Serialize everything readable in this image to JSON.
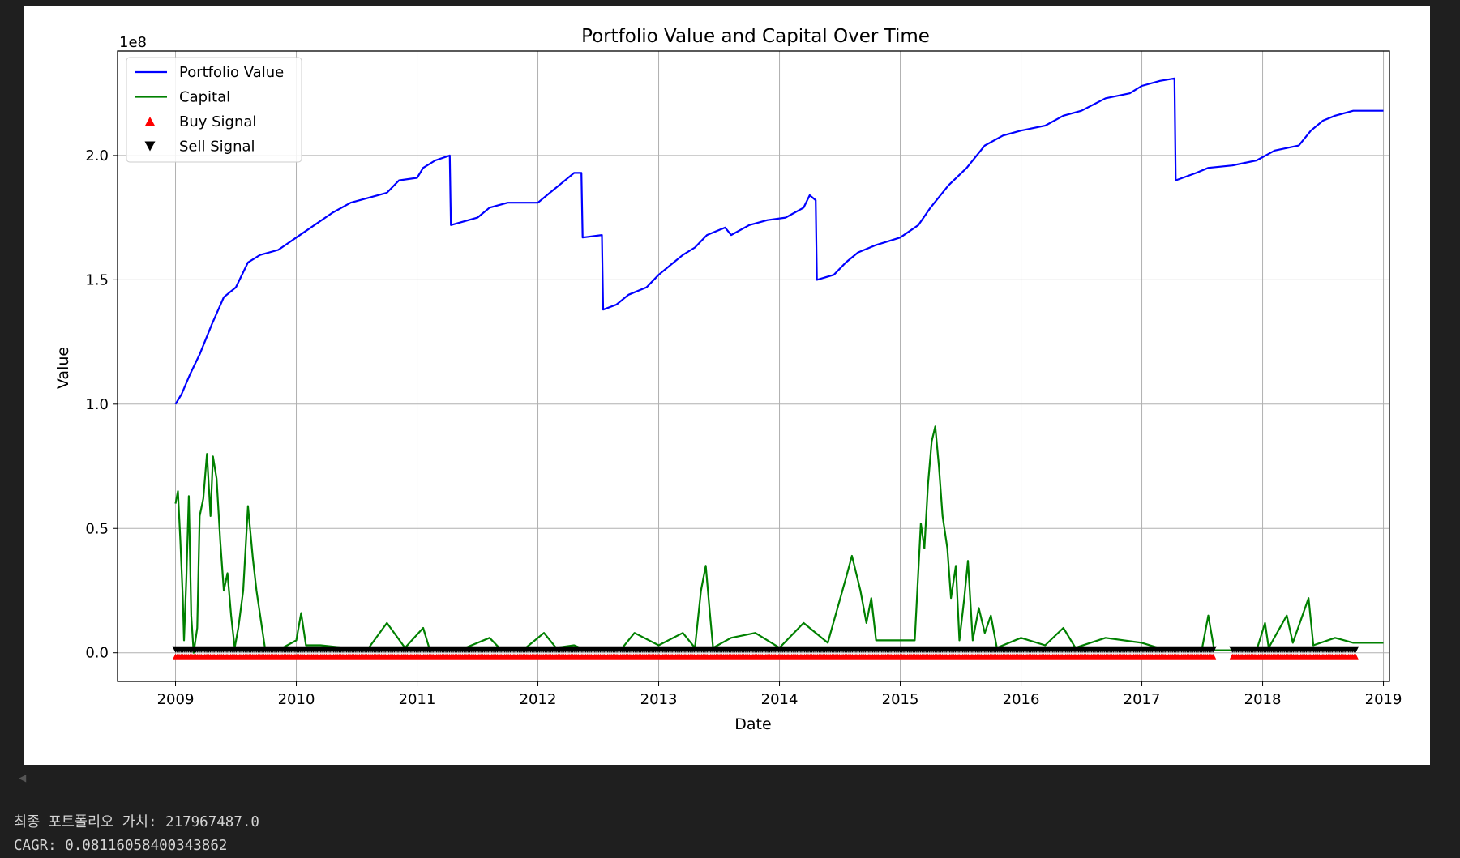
{
  "chart_data": {
    "type": "line",
    "title": "Portfolio Value and Capital Over Time",
    "xlabel": "Date",
    "ylabel": "Value",
    "y_offset_label": "1e8",
    "y_scale": 100000000,
    "xlim": [
      2008.52,
      2019.05
    ],
    "ylim": [
      -0.115,
      2.42
    ],
    "x_ticks": [
      2009,
      2010,
      2011,
      2012,
      2013,
      2014,
      2015,
      2016,
      2017,
      2018,
      2019
    ],
    "x_tick_labels": [
      "2009",
      "2010",
      "2011",
      "2012",
      "2013",
      "2014",
      "2015",
      "2016",
      "2017",
      "2018",
      "2019"
    ],
    "y_ticks": [
      0.0,
      0.5,
      1.0,
      1.5,
      2.0
    ],
    "y_tick_labels": [
      "0.0",
      "0.5",
      "1.0",
      "1.5",
      "2.0"
    ],
    "grid": true,
    "legend_position": "top-left",
    "legend": [
      {
        "label": "Portfolio Value",
        "marker": "line",
        "color": "#0000ff"
      },
      {
        "label": "Capital",
        "marker": "line",
        "color": "#008000"
      },
      {
        "label": "Buy Signal",
        "marker": "triangle-up",
        "color": "#ff0000"
      },
      {
        "label": "Sell Signal",
        "marker": "triangle-down",
        "color": "#000000"
      }
    ],
    "series": [
      {
        "name": "Portfolio Value",
        "color": "#0000ff",
        "points": [
          [
            2009.0,
            1.0
          ],
          [
            2009.05,
            1.04
          ],
          [
            2009.12,
            1.12
          ],
          [
            2009.2,
            1.2
          ],
          [
            2009.3,
            1.32
          ],
          [
            2009.4,
            1.43
          ],
          [
            2009.5,
            1.47
          ],
          [
            2009.6,
            1.57
          ],
          [
            2009.7,
            1.6
          ],
          [
            2009.85,
            1.62
          ],
          [
            2010.0,
            1.67
          ],
          [
            2010.15,
            1.72
          ],
          [
            2010.3,
            1.77
          ],
          [
            2010.45,
            1.81
          ],
          [
            2010.6,
            1.83
          ],
          [
            2010.75,
            1.85
          ],
          [
            2010.85,
            1.9
          ],
          [
            2011.0,
            1.91
          ],
          [
            2011.05,
            1.95
          ],
          [
            2011.15,
            1.98
          ],
          [
            2011.27,
            2.0
          ],
          [
            2011.28,
            1.72
          ],
          [
            2011.5,
            1.75
          ],
          [
            2011.6,
            1.79
          ],
          [
            2011.75,
            1.81
          ],
          [
            2012.0,
            1.81
          ],
          [
            2012.1,
            1.85
          ],
          [
            2012.2,
            1.89
          ],
          [
            2012.3,
            1.93
          ],
          [
            2012.36,
            1.93
          ],
          [
            2012.37,
            1.67
          ],
          [
            2012.53,
            1.68
          ],
          [
            2012.54,
            1.38
          ],
          [
            2012.65,
            1.4
          ],
          [
            2012.75,
            1.44
          ],
          [
            2012.9,
            1.47
          ],
          [
            2013.0,
            1.52
          ],
          [
            2013.1,
            1.56
          ],
          [
            2013.2,
            1.6
          ],
          [
            2013.3,
            1.63
          ],
          [
            2013.4,
            1.68
          ],
          [
            2013.55,
            1.71
          ],
          [
            2013.6,
            1.68
          ],
          [
            2013.75,
            1.72
          ],
          [
            2013.9,
            1.74
          ],
          [
            2014.05,
            1.75
          ],
          [
            2014.2,
            1.79
          ],
          [
            2014.25,
            1.84
          ],
          [
            2014.3,
            1.82
          ],
          [
            2014.31,
            1.5
          ],
          [
            2014.45,
            1.52
          ],
          [
            2014.55,
            1.57
          ],
          [
            2014.65,
            1.61
          ],
          [
            2014.8,
            1.64
          ],
          [
            2015.0,
            1.67
          ],
          [
            2015.15,
            1.72
          ],
          [
            2015.25,
            1.79
          ],
          [
            2015.4,
            1.88
          ],
          [
            2015.55,
            1.95
          ],
          [
            2015.7,
            2.04
          ],
          [
            2015.85,
            2.08
          ],
          [
            2016.0,
            2.1
          ],
          [
            2016.2,
            2.12
          ],
          [
            2016.35,
            2.16
          ],
          [
            2016.5,
            2.18
          ],
          [
            2016.7,
            2.23
          ],
          [
            2016.9,
            2.25
          ],
          [
            2017.0,
            2.28
          ],
          [
            2017.15,
            2.3
          ],
          [
            2017.27,
            2.31
          ],
          [
            2017.28,
            1.9
          ],
          [
            2017.45,
            1.93
          ],
          [
            2017.55,
            1.95
          ],
          [
            2017.75,
            1.96
          ],
          [
            2017.95,
            1.98
          ],
          [
            2018.1,
            2.02
          ],
          [
            2018.3,
            2.04
          ],
          [
            2018.4,
            2.1
          ],
          [
            2018.5,
            2.14
          ],
          [
            2018.6,
            2.16
          ],
          [
            2018.75,
            2.18
          ],
          [
            2019.0,
            2.18
          ]
        ]
      },
      {
        "name": "Capital",
        "color": "#008000",
        "points": [
          [
            2009.0,
            0.6
          ],
          [
            2009.02,
            0.65
          ],
          [
            2009.04,
            0.45
          ],
          [
            2009.06,
            0.22
          ],
          [
            2009.07,
            0.05
          ],
          [
            2009.09,
            0.3
          ],
          [
            2009.11,
            0.63
          ],
          [
            2009.13,
            0.15
          ],
          [
            2009.15,
            0.0
          ],
          [
            2009.18,
            0.1
          ],
          [
            2009.2,
            0.55
          ],
          [
            2009.23,
            0.62
          ],
          [
            2009.26,
            0.8
          ],
          [
            2009.29,
            0.55
          ],
          [
            2009.31,
            0.79
          ],
          [
            2009.34,
            0.7
          ],
          [
            2009.37,
            0.45
          ],
          [
            2009.4,
            0.25
          ],
          [
            2009.43,
            0.32
          ],
          [
            2009.46,
            0.15
          ],
          [
            2009.49,
            0.02
          ],
          [
            2009.52,
            0.1
          ],
          [
            2009.56,
            0.25
          ],
          [
            2009.6,
            0.59
          ],
          [
            2009.64,
            0.38
          ],
          [
            2009.67,
            0.25
          ],
          [
            2009.71,
            0.12
          ],
          [
            2009.74,
            0.02
          ],
          [
            2009.85,
            0.01
          ],
          [
            2010.0,
            0.05
          ],
          [
            2010.04,
            0.16
          ],
          [
            2010.08,
            0.03
          ],
          [
            2010.2,
            0.03
          ],
          [
            2010.4,
            0.02
          ],
          [
            2010.6,
            0.02
          ],
          [
            2010.75,
            0.12
          ],
          [
            2010.9,
            0.02
          ],
          [
            2011.05,
            0.1
          ],
          [
            2011.1,
            0.02
          ],
          [
            2011.4,
            0.02
          ],
          [
            2011.6,
            0.06
          ],
          [
            2011.7,
            0.01
          ],
          [
            2011.9,
            0.02
          ],
          [
            2012.05,
            0.08
          ],
          [
            2012.15,
            0.02
          ],
          [
            2012.3,
            0.03
          ],
          [
            2012.4,
            0.01
          ],
          [
            2012.7,
            0.02
          ],
          [
            2012.8,
            0.08
          ],
          [
            2013.0,
            0.03
          ],
          [
            2013.2,
            0.08
          ],
          [
            2013.3,
            0.02
          ],
          [
            2013.35,
            0.25
          ],
          [
            2013.39,
            0.35
          ],
          [
            2013.42,
            0.18
          ],
          [
            2013.45,
            0.02
          ],
          [
            2013.6,
            0.06
          ],
          [
            2013.8,
            0.08
          ],
          [
            2014.0,
            0.02
          ],
          [
            2014.2,
            0.12
          ],
          [
            2014.4,
            0.04
          ],
          [
            2014.55,
            0.3
          ],
          [
            2014.6,
            0.39
          ],
          [
            2014.67,
            0.25
          ],
          [
            2014.72,
            0.12
          ],
          [
            2014.76,
            0.22
          ],
          [
            2014.8,
            0.05
          ],
          [
            2015.0,
            0.05
          ],
          [
            2015.12,
            0.05
          ],
          [
            2015.17,
            0.52
          ],
          [
            2015.2,
            0.42
          ],
          [
            2015.23,
            0.68
          ],
          [
            2015.26,
            0.85
          ],
          [
            2015.29,
            0.91
          ],
          [
            2015.32,
            0.75
          ],
          [
            2015.35,
            0.55
          ],
          [
            2015.39,
            0.42
          ],
          [
            2015.42,
            0.22
          ],
          [
            2015.46,
            0.35
          ],
          [
            2015.49,
            0.05
          ],
          [
            2015.53,
            0.22
          ],
          [
            2015.56,
            0.37
          ],
          [
            2015.6,
            0.05
          ],
          [
            2015.65,
            0.18
          ],
          [
            2015.7,
            0.08
          ],
          [
            2015.75,
            0.15
          ],
          [
            2015.8,
            0.02
          ],
          [
            2016.0,
            0.06
          ],
          [
            2016.2,
            0.03
          ],
          [
            2016.35,
            0.1
          ],
          [
            2016.45,
            0.02
          ],
          [
            2016.7,
            0.06
          ],
          [
            2017.0,
            0.04
          ],
          [
            2017.2,
            0.01
          ],
          [
            2017.5,
            0.02
          ],
          [
            2017.55,
            0.15
          ],
          [
            2017.6,
            0.01
          ],
          [
            2017.78,
            0.01
          ],
          [
            2017.95,
            0.01
          ],
          [
            2018.02,
            0.12
          ],
          [
            2018.05,
            0.02
          ],
          [
            2018.2,
            0.15
          ],
          [
            2018.25,
            0.04
          ],
          [
            2018.38,
            0.22
          ],
          [
            2018.42,
            0.03
          ],
          [
            2018.6,
            0.06
          ],
          [
            2018.75,
            0.04
          ],
          [
            2019.0,
            0.04
          ]
        ]
      }
    ],
    "signal_ranges": [
      [
        2009.0,
        2017.6
      ],
      [
        2017.75,
        2018.78
      ]
    ],
    "signal_value": 0.0
  },
  "stdout": [
    "최종 포트폴리오 가치: 217967487.0",
    "CAGR: 0.08116058400343862"
  ]
}
